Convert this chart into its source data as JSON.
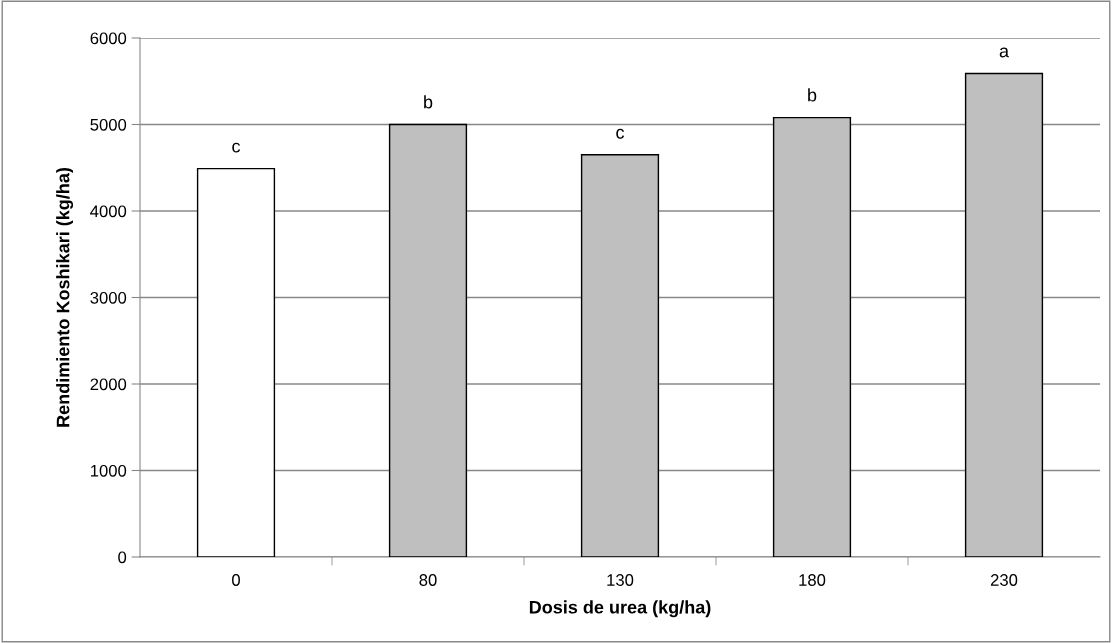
{
  "chart_data": {
    "type": "bar",
    "xlabel": "Dosis de urea (kg/ha)",
    "ylabel": "Rendimiento Koshikari (kg/ha)",
    "categories": [
      "0",
      "80",
      "130",
      "180",
      "230"
    ],
    "values": [
      4490,
      5000,
      4650,
      5080,
      5590
    ],
    "colors": [
      "#ffffff",
      "#bfbfbf",
      "#bfbfbf",
      "#bfbfbf",
      "#bfbfbf"
    ],
    "ylim": [
      0,
      6000
    ],
    "yticks": [
      0,
      1000,
      2000,
      3000,
      4000,
      5000,
      6000
    ],
    "grid": "y",
    "annotations": [
      {
        "text": "c",
        "x": "0",
        "y": 4490
      },
      {
        "text": "b",
        "x": "80",
        "y": 5000
      },
      {
        "text": "c",
        "x": "130",
        "y": 4650
      },
      {
        "text": "b",
        "x": "180",
        "y": 5080
      },
      {
        "text": "a",
        "x": "230",
        "y": 5590
      }
    ]
  }
}
